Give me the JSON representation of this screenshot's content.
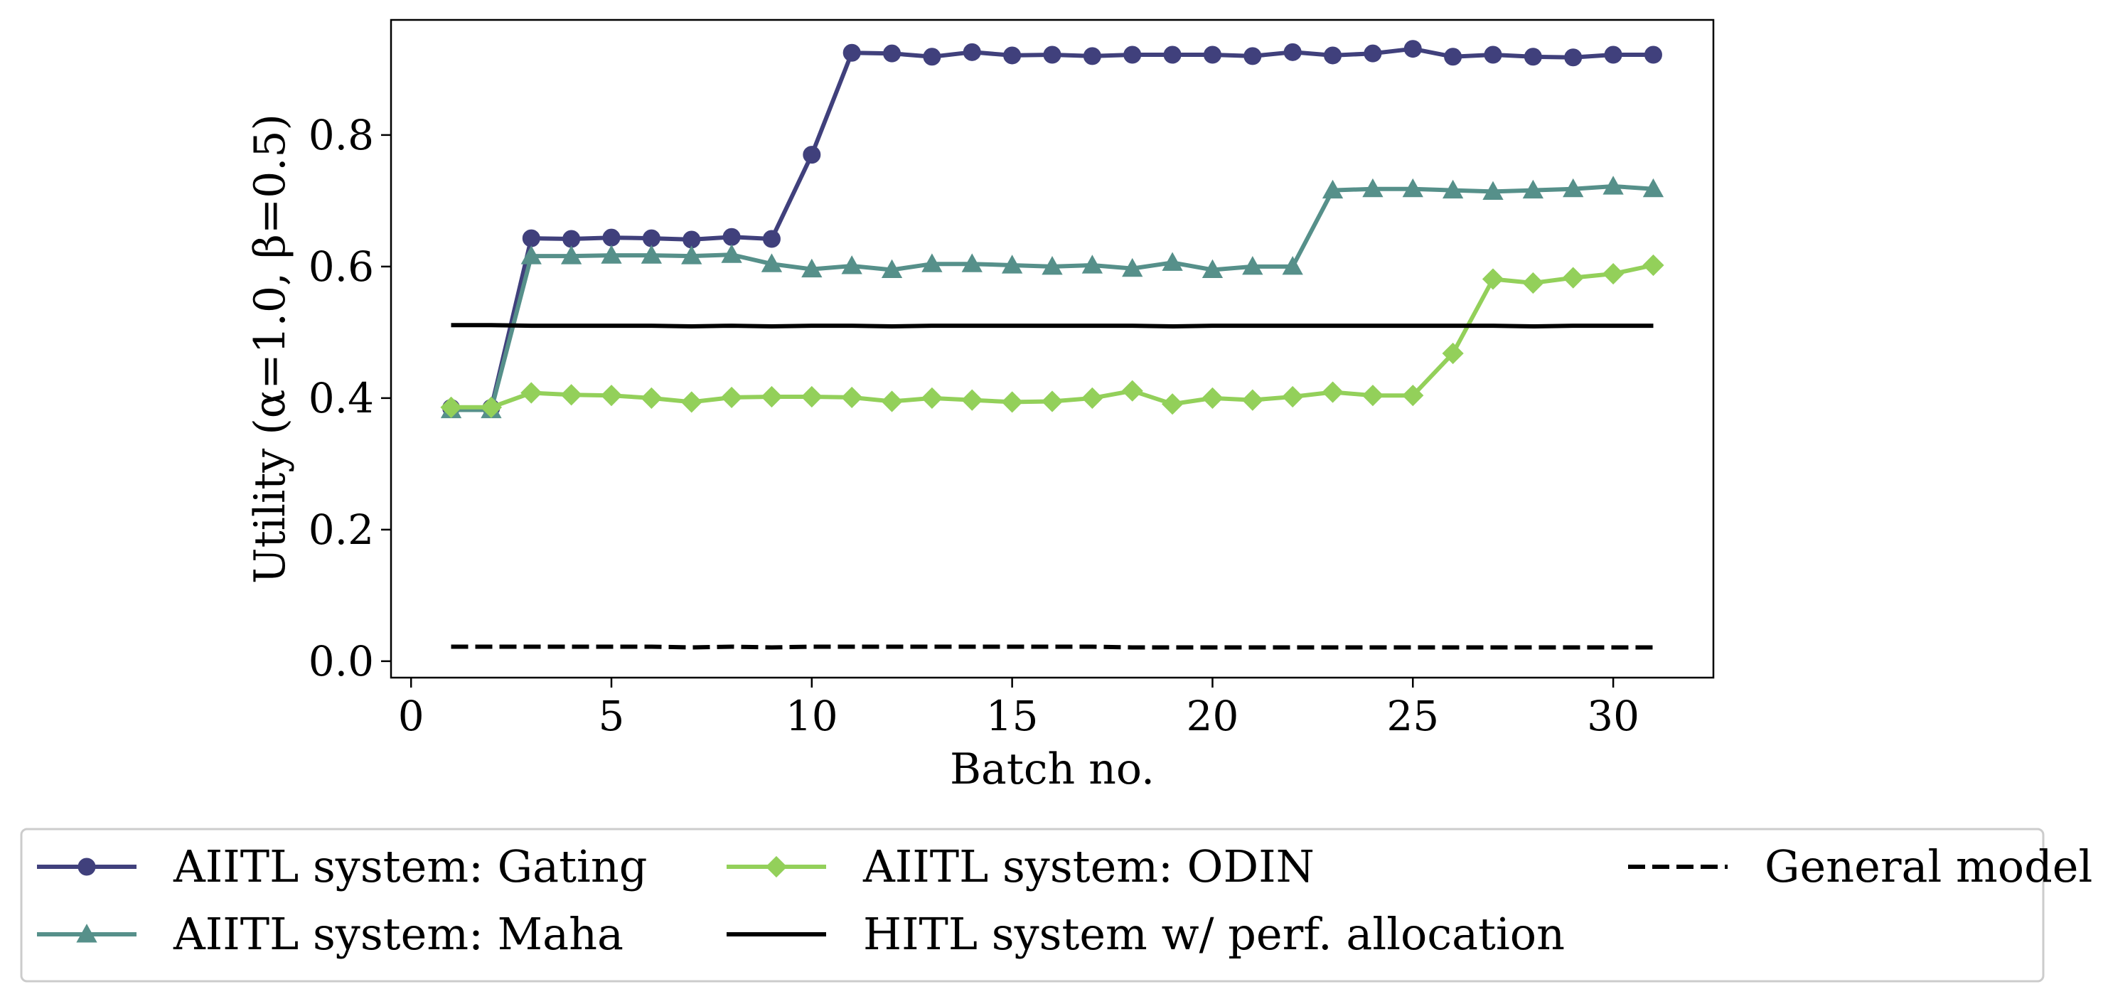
{
  "chart_data": {
    "type": "line",
    "xlabel": "Batch no.",
    "ylabel": "Utility (α=1.0, β=0.5)",
    "xlim": [
      -0.5,
      32.5
    ],
    "ylim": [
      -0.025,
      0.975
    ],
    "xticks": [
      0,
      5,
      10,
      15,
      20,
      25,
      30
    ],
    "yticks": [
      0.0,
      0.2,
      0.4,
      0.6,
      0.8
    ],
    "xtick_labels": [
      "0",
      "5",
      "10",
      "15",
      "20",
      "25",
      "30"
    ],
    "ytick_labels": [
      "0.0",
      "0.2",
      "0.4",
      "0.6",
      "0.8"
    ],
    "grid": false,
    "legend_placement": "below",
    "x": [
      1,
      2,
      3,
      4,
      5,
      6,
      7,
      8,
      9,
      10,
      11,
      12,
      13,
      14,
      15,
      16,
      17,
      18,
      19,
      20,
      21,
      22,
      23,
      24,
      25,
      26,
      27,
      28,
      29,
      30,
      31
    ],
    "series": [
      {
        "name": "AIITL system: Gating",
        "color": "#40407c",
        "marker": "circle",
        "line_style": "solid",
        "values": [
          0.385,
          0.385,
          0.643,
          0.642,
          0.644,
          0.643,
          0.641,
          0.645,
          0.642,
          0.77,
          0.925,
          0.924,
          0.919,
          0.926,
          0.921,
          0.922,
          0.92,
          0.922,
          0.922,
          0.922,
          0.92,
          0.926,
          0.921,
          0.924,
          0.931,
          0.919,
          0.922,
          0.919,
          0.918,
          0.922,
          0.922
        ]
      },
      {
        "name": "AIITL system: Maha",
        "color": "#56908a",
        "marker": "triangle",
        "line_style": "solid",
        "values": [
          0.382,
          0.382,
          0.616,
          0.616,
          0.617,
          0.617,
          0.616,
          0.618,
          0.604,
          0.596,
          0.601,
          0.595,
          0.604,
          0.604,
          0.602,
          0.6,
          0.602,
          0.597,
          0.606,
          0.595,
          0.6,
          0.6,
          0.716,
          0.718,
          0.718,
          0.716,
          0.714,
          0.716,
          0.718,
          0.722,
          0.718
        ]
      },
      {
        "name": "AIITL system: ODIN",
        "color": "#93d05a",
        "marker": "diamond",
        "line_style": "solid",
        "values": [
          0.386,
          0.386,
          0.408,
          0.405,
          0.404,
          0.4,
          0.394,
          0.401,
          0.402,
          0.402,
          0.401,
          0.395,
          0.4,
          0.397,
          0.394,
          0.395,
          0.4,
          0.411,
          0.391,
          0.4,
          0.397,
          0.402,
          0.409,
          0.404,
          0.404,
          0.468,
          0.581,
          0.575,
          0.583,
          0.589,
          0.602
        ]
      },
      {
        "name": "HITL system w/ perf. allocation",
        "color": "#000000",
        "marker": "none",
        "line_style": "solid",
        "values": [
          0.511,
          0.511,
          0.51,
          0.51,
          0.51,
          0.51,
          0.509,
          0.51,
          0.509,
          0.51,
          0.51,
          0.509,
          0.51,
          0.51,
          0.51,
          0.51,
          0.51,
          0.51,
          0.509,
          0.51,
          0.51,
          0.51,
          0.51,
          0.51,
          0.51,
          0.51,
          0.51,
          0.509,
          0.51,
          0.51,
          0.51
        ]
      },
      {
        "name": "General model",
        "color": "#000000",
        "marker": "none",
        "line_style": "dashed",
        "values": [
          0.022,
          0.022,
          0.022,
          0.022,
          0.022,
          0.022,
          0.021,
          0.022,
          0.021,
          0.022,
          0.022,
          0.022,
          0.022,
          0.022,
          0.022,
          0.022,
          0.022,
          0.021,
          0.021,
          0.021,
          0.021,
          0.021,
          0.021,
          0.021,
          0.021,
          0.021,
          0.021,
          0.021,
          0.021,
          0.021,
          0.021
        ]
      }
    ]
  }
}
